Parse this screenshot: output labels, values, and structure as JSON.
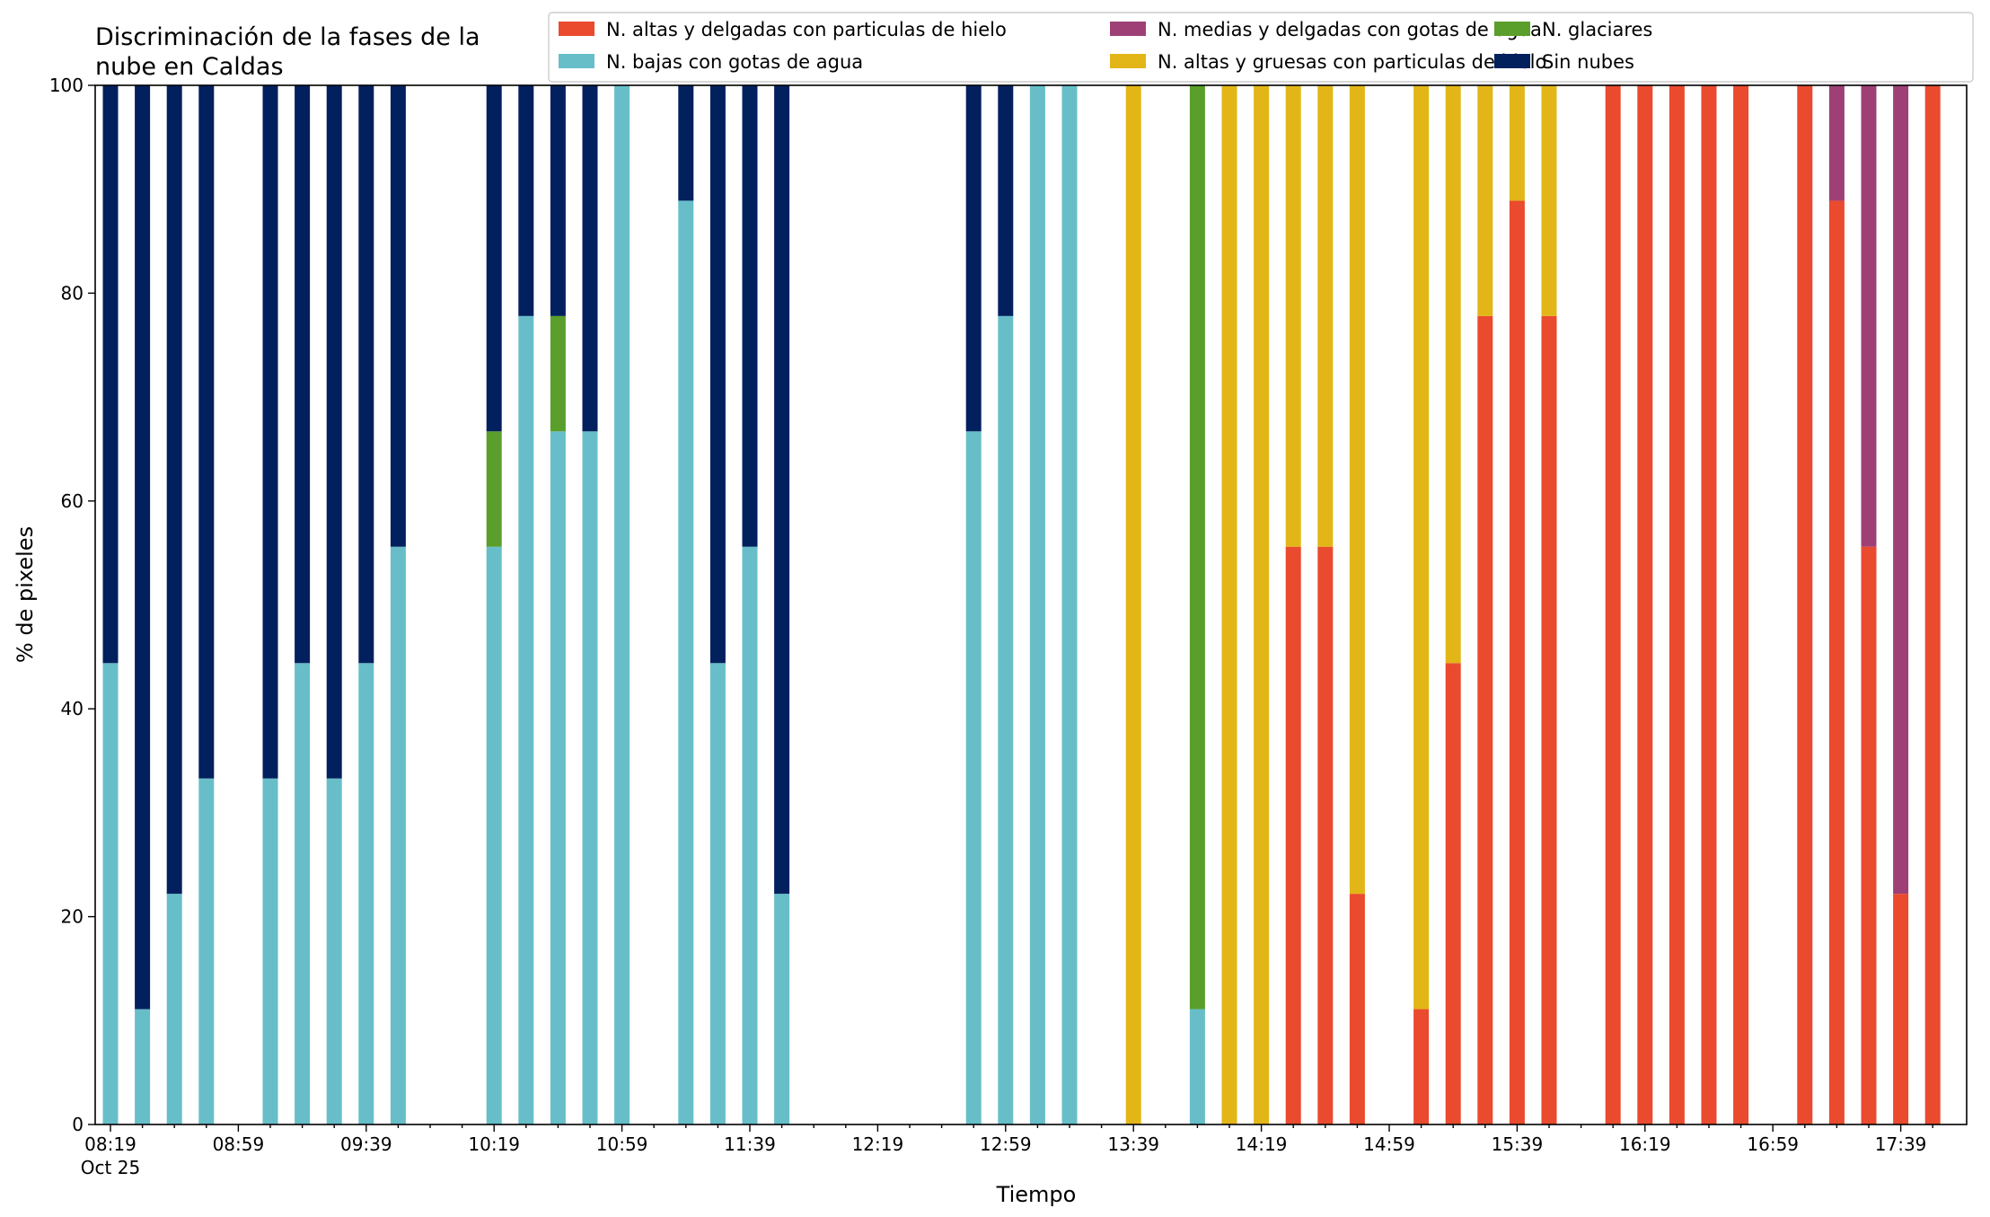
{
  "chart_data": {
    "type": "bar",
    "stacked": true,
    "title_lines": [
      "Discriminación de la fases de la",
      "nube en Caldas"
    ],
    "xlabel": "Tiempo",
    "ylabel": "% de pixeles",
    "ylim": [
      0,
      100
    ],
    "yticks": [
      0,
      20,
      40,
      60,
      80,
      100
    ],
    "grid": false,
    "legend_position": "top",
    "x_start": "08:19",
    "x_interval_minutes": 10,
    "x_tick_labels": [
      "08:19",
      "08:59",
      "09:39",
      "10:19",
      "10:59",
      "11:39",
      "12:19",
      "12:59",
      "13:39",
      "14:19",
      "14:59",
      "15:39",
      "16:19",
      "16:59",
      "17:39"
    ],
    "x_date_label": "Oct 25",
    "x": [
      "08:19",
      "08:29",
      "08:39",
      "08:49",
      "08:59",
      "09:09",
      "09:19",
      "09:29",
      "09:39",
      "09:49",
      "09:59",
      "10:09",
      "10:19",
      "10:29",
      "10:39",
      "10:49",
      "10:59",
      "11:09",
      "11:19",
      "11:29",
      "11:39",
      "11:49",
      "11:59",
      "12:09",
      "12:19",
      "12:29",
      "12:39",
      "12:49",
      "12:59",
      "13:09",
      "13:19",
      "13:29",
      "13:39",
      "13:49",
      "13:59",
      "14:09",
      "14:19",
      "14:29",
      "14:39",
      "14:49",
      "14:59",
      "15:09",
      "15:19",
      "15:29",
      "15:39",
      "15:49",
      "15:59",
      "16:09",
      "16:19",
      "16:29",
      "16:39",
      "16:49",
      "16:59",
      "17:09",
      "17:19",
      "17:29",
      "17:39",
      "17:49"
    ],
    "series": [
      {
        "name": "N. altas y delgadas con particulas de hielo",
        "color": "#ea4a2e",
        "values": [
          0,
          0,
          0,
          0,
          0,
          0,
          0,
          0,
          0,
          0,
          0,
          0,
          0,
          0,
          0,
          0,
          0,
          0,
          0,
          0,
          0,
          0,
          0,
          0,
          0,
          0,
          0,
          0,
          0,
          0,
          0,
          0,
          0,
          0,
          0,
          0,
          0,
          55.6,
          55.6,
          22.2,
          0,
          11.1,
          44.4,
          77.8,
          88.9,
          77.8,
          0,
          100,
          100,
          100,
          100,
          100,
          0,
          100,
          88.9,
          55.6,
          22.2,
          100
        ]
      },
      {
        "name": "N. altas y gruesas con particulas de hielo",
        "color": "#e2b617",
        "values": [
          0,
          0,
          0,
          0,
          0,
          0,
          0,
          0,
          0,
          0,
          0,
          0,
          0,
          0,
          0,
          0,
          0,
          0,
          0,
          0,
          0,
          0,
          0,
          0,
          0,
          0,
          0,
          0,
          0,
          0,
          0,
          0,
          100,
          0,
          0,
          100,
          100,
          44.4,
          44.4,
          77.8,
          0,
          88.9,
          55.6,
          22.2,
          11.1,
          22.2,
          0,
          0,
          0,
          0,
          0,
          0,
          0,
          0,
          0,
          0,
          0,
          0
        ]
      },
      {
        "name": "N. bajas con gotas de agua",
        "color": "#67bec9",
        "values": [
          44.4,
          11.1,
          22.2,
          33.3,
          0,
          33.3,
          44.4,
          33.3,
          44.4,
          55.6,
          0,
          0,
          55.6,
          77.8,
          66.7,
          66.7,
          100,
          0,
          88.9,
          44.4,
          55.6,
          22.2,
          0,
          0,
          0,
          0,
          0,
          66.7,
          77.8,
          100,
          100,
          0,
          0,
          0,
          11.1,
          0,
          0,
          0,
          0,
          0,
          0,
          0,
          0,
          0,
          0,
          0,
          0,
          0,
          0,
          0,
          0,
          0,
          0,
          0,
          0,
          0,
          0,
          0
        ]
      },
      {
        "name": "N. glaciares",
        "color": "#5a9e2b",
        "values": [
          0,
          0,
          0,
          0,
          0,
          0,
          0,
          0,
          0,
          0,
          0,
          0,
          11.1,
          0,
          11.1,
          0,
          0,
          0,
          0,
          0,
          0,
          0,
          0,
          0,
          0,
          0,
          0,
          0,
          0,
          0,
          0,
          0,
          0,
          0,
          88.9,
          0,
          0,
          0,
          0,
          0,
          0,
          0,
          0,
          0,
          0,
          0,
          0,
          0,
          0,
          0,
          0,
          0,
          0,
          0,
          0,
          0,
          0,
          0
        ]
      },
      {
        "name": "N. medias y delgadas con gotas de agua",
        "color": "#9e4076",
        "values": [
          0,
          0,
          0,
          0,
          0,
          0,
          0,
          0,
          0,
          0,
          0,
          0,
          0,
          0,
          0,
          0,
          0,
          0,
          0,
          0,
          0,
          0,
          0,
          0,
          0,
          0,
          0,
          0,
          0,
          0,
          0,
          0,
          0,
          0,
          0,
          0,
          0,
          0,
          0,
          0,
          0,
          0,
          0,
          0,
          0,
          0,
          0,
          0,
          0,
          0,
          0,
          0,
          0,
          0,
          11.1,
          44.4,
          77.8,
          0
        ]
      },
      {
        "name": "Sin nubes",
        "color": "#03205e",
        "values": [
          55.6,
          88.9,
          77.8,
          66.7,
          0,
          66.7,
          55.6,
          66.7,
          55.6,
          44.4,
          0,
          0,
          33.3,
          22.2,
          22.2,
          33.3,
          0,
          0,
          11.1,
          55.6,
          44.4,
          77.8,
          0,
          0,
          0,
          0,
          0,
          33.3,
          22.2,
          0,
          0,
          0,
          0,
          0,
          0,
          0,
          0,
          0,
          0,
          0,
          0,
          0,
          0,
          0,
          0,
          0,
          0,
          0,
          0,
          0,
          0,
          0,
          0,
          0,
          0,
          0,
          0,
          0
        ]
      }
    ],
    "legend_order": [
      0,
      2,
      4,
      1,
      3,
      5
    ]
  }
}
